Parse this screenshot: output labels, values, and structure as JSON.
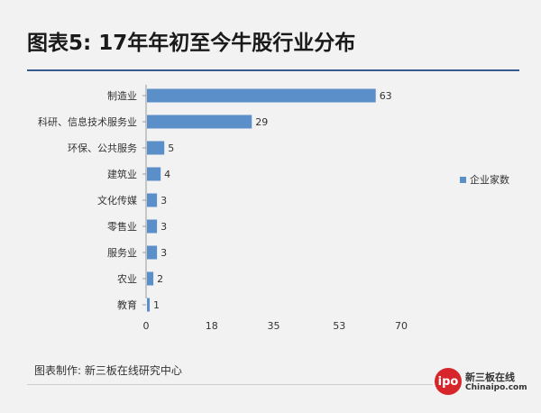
{
  "title": "图表5: 17年年初至今牛股行业分布",
  "footer": "图表制作: 新三板在线研究中心",
  "logo": {
    "mark": "ipo",
    "name": "新三板在线",
    "url_text": "Chinaipo.com"
  },
  "colors": {
    "bar": "#5b8fc9",
    "rule": "#3a5a8f",
    "background": "#f2f2f2"
  },
  "chart_data": {
    "type": "bar",
    "orientation": "horizontal",
    "categories": [
      "制造业",
      "科研、信息技术服务业",
      "环保、公共服务",
      "建筑业",
      "文化传媒",
      "零售业",
      "服务业",
      "农业",
      "教育"
    ],
    "series": [
      {
        "name": "企业家数",
        "values": [
          63,
          29,
          5,
          4,
          3,
          3,
          3,
          2,
          1
        ]
      }
    ],
    "xticks": [
      "0",
      "18",
      "35",
      "53",
      "70"
    ],
    "xlim": [
      0,
      70
    ],
    "data_labels": [
      "63",
      "29",
      "5",
      "4",
      "3",
      "3",
      "3",
      "2",
      "1"
    ],
    "legend_position": "right",
    "grid": false
  }
}
